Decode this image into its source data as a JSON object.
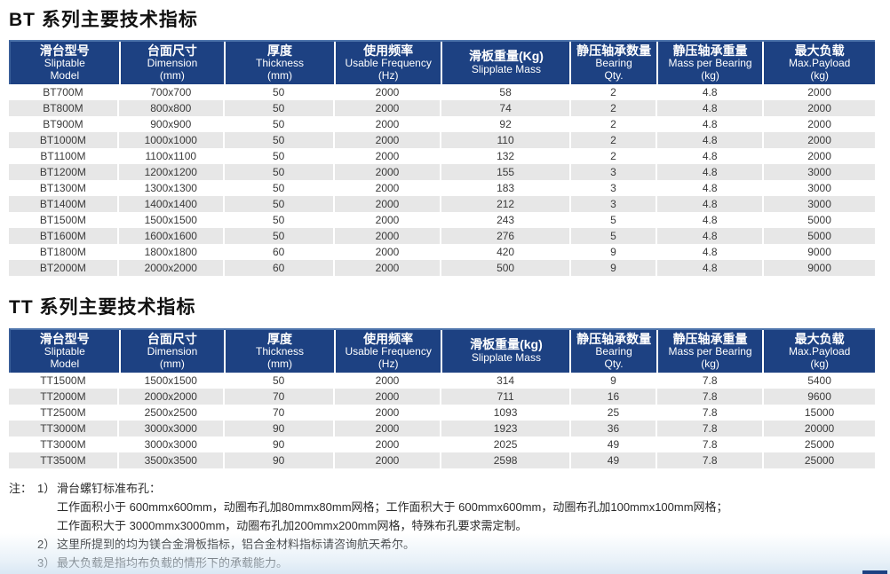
{
  "accent_color": "#1d4182",
  "stripe_color": "#e7e7e7",
  "bt_table": {
    "title": "BT 系列主要技术指标",
    "columns": [
      {
        "cn": "滑台型号",
        "en": "Sliptable",
        "unit": "Model"
      },
      {
        "cn": "台面尺寸",
        "en": "Dimension",
        "unit": "(mm)"
      },
      {
        "cn": "厚度",
        "en": "Thickness",
        "unit": "(mm)"
      },
      {
        "cn": "使用频率",
        "en": "Usable Frequency",
        "unit": "(Hz)"
      },
      {
        "cn": "滑板重量(Kg)",
        "en": "Slipplate Mass",
        "unit": ""
      },
      {
        "cn": "静压轴承数量",
        "en": "Bearing",
        "unit": "Qty."
      },
      {
        "cn": "静压轴承重量",
        "en": "Mass per Bearing",
        "unit": "(kg)"
      },
      {
        "cn": "最大负载",
        "en": "Max.Payload",
        "unit": "(kg)"
      }
    ],
    "rows": [
      [
        "BT700M",
        "700x700",
        "50",
        "2000",
        "58",
        "2",
        "4.8",
        "2000"
      ],
      [
        "BT800M",
        "800x800",
        "50",
        "2000",
        "74",
        "2",
        "4.8",
        "2000"
      ],
      [
        "BT900M",
        "900x900",
        "50",
        "2000",
        "92",
        "2",
        "4.8",
        "2000"
      ],
      [
        "BT1000M",
        "1000x1000",
        "50",
        "2000",
        "110",
        "2",
        "4.8",
        "2000"
      ],
      [
        "BT1100M",
        "1100x1100",
        "50",
        "2000",
        "132",
        "2",
        "4.8",
        "2000"
      ],
      [
        "BT1200M",
        "1200x1200",
        "50",
        "2000",
        "155",
        "3",
        "4.8",
        "3000"
      ],
      [
        "BT1300M",
        "1300x1300",
        "50",
        "2000",
        "183",
        "3",
        "4.8",
        "3000"
      ],
      [
        "BT1400M",
        "1400x1400",
        "50",
        "2000",
        "212",
        "3",
        "4.8",
        "3000"
      ],
      [
        "BT1500M",
        "1500x1500",
        "50",
        "2000",
        "243",
        "5",
        "4.8",
        "5000"
      ],
      [
        "BT1600M",
        "1600x1600",
        "50",
        "2000",
        "276",
        "5",
        "4.8",
        "5000"
      ],
      [
        "BT1800M",
        "1800x1800",
        "60",
        "2000",
        "420",
        "9",
        "4.8",
        "9000"
      ],
      [
        "BT2000M",
        "2000x2000",
        "60",
        "2000",
        "500",
        "9",
        "4.8",
        "9000"
      ]
    ]
  },
  "tt_table": {
    "title": "TT 系列主要技术指标",
    "columns": [
      {
        "cn": "滑台型号",
        "en": "Sliptable",
        "unit": "Model"
      },
      {
        "cn": "台面尺寸",
        "en": "Dimension",
        "unit": "(mm)"
      },
      {
        "cn": "厚度",
        "en": "Thickness",
        "unit": "(mm)"
      },
      {
        "cn": "使用频率",
        "en": "Usable Frequency",
        "unit": "(Hz)"
      },
      {
        "cn": "滑板重量(kg)",
        "en": "Slipplate Mass",
        "unit": ""
      },
      {
        "cn": "静压轴承数量",
        "en": "Bearing",
        "unit": "Qty."
      },
      {
        "cn": "静压轴承重量",
        "en": "Mass per Bearing",
        "unit": "(kg)"
      },
      {
        "cn": "最大负载",
        "en": "Max.Payload",
        "unit": "(kg)"
      }
    ],
    "rows": [
      [
        "TT1500M",
        "1500x1500",
        "50",
        "2000",
        "314",
        "9",
        "7.8",
        "5400"
      ],
      [
        "TT2000M",
        "2000x2000",
        "70",
        "2000",
        "711",
        "16",
        "7.8",
        "9600"
      ],
      [
        "TT2500M",
        "2500x2500",
        "70",
        "2000",
        "1093",
        "25",
        "7.8",
        "15000"
      ],
      [
        "TT3000M",
        "3000x3000",
        "90",
        "2000",
        "1923",
        "36",
        "7.8",
        "20000"
      ],
      [
        "TT3000M",
        "3000x3000",
        "90",
        "2000",
        "2025",
        "49",
        "7.8",
        "25000"
      ],
      [
        "TT3500M",
        "3500x3500",
        "90",
        "2000",
        "2598",
        "49",
        "7.8",
        "25000"
      ]
    ]
  },
  "notes": {
    "label": "注：",
    "items": [
      {
        "num": "1）",
        "lines": [
          "滑台螺钉标准布孔：",
          "工作面积小于 600mmx600mm，动圈布孔加80mmx80mm网格；工作面积大于 600mmx600mm，动圈布孔加100mmx100mm网格；",
          "工作面积大于 3000mmx3000mm，动圈布孔加200mmx200mm网格，特殊布孔要求需定制。"
        ]
      },
      {
        "num": "2）",
        "lines": [
          "这里所提到的均为镁合金滑板指标，铝合金材料指标请咨询航天希尔。"
        ]
      },
      {
        "num": "3）",
        "lines": [
          "最大负载是指均布负载的情形下的承载能力。"
        ]
      }
    ]
  }
}
